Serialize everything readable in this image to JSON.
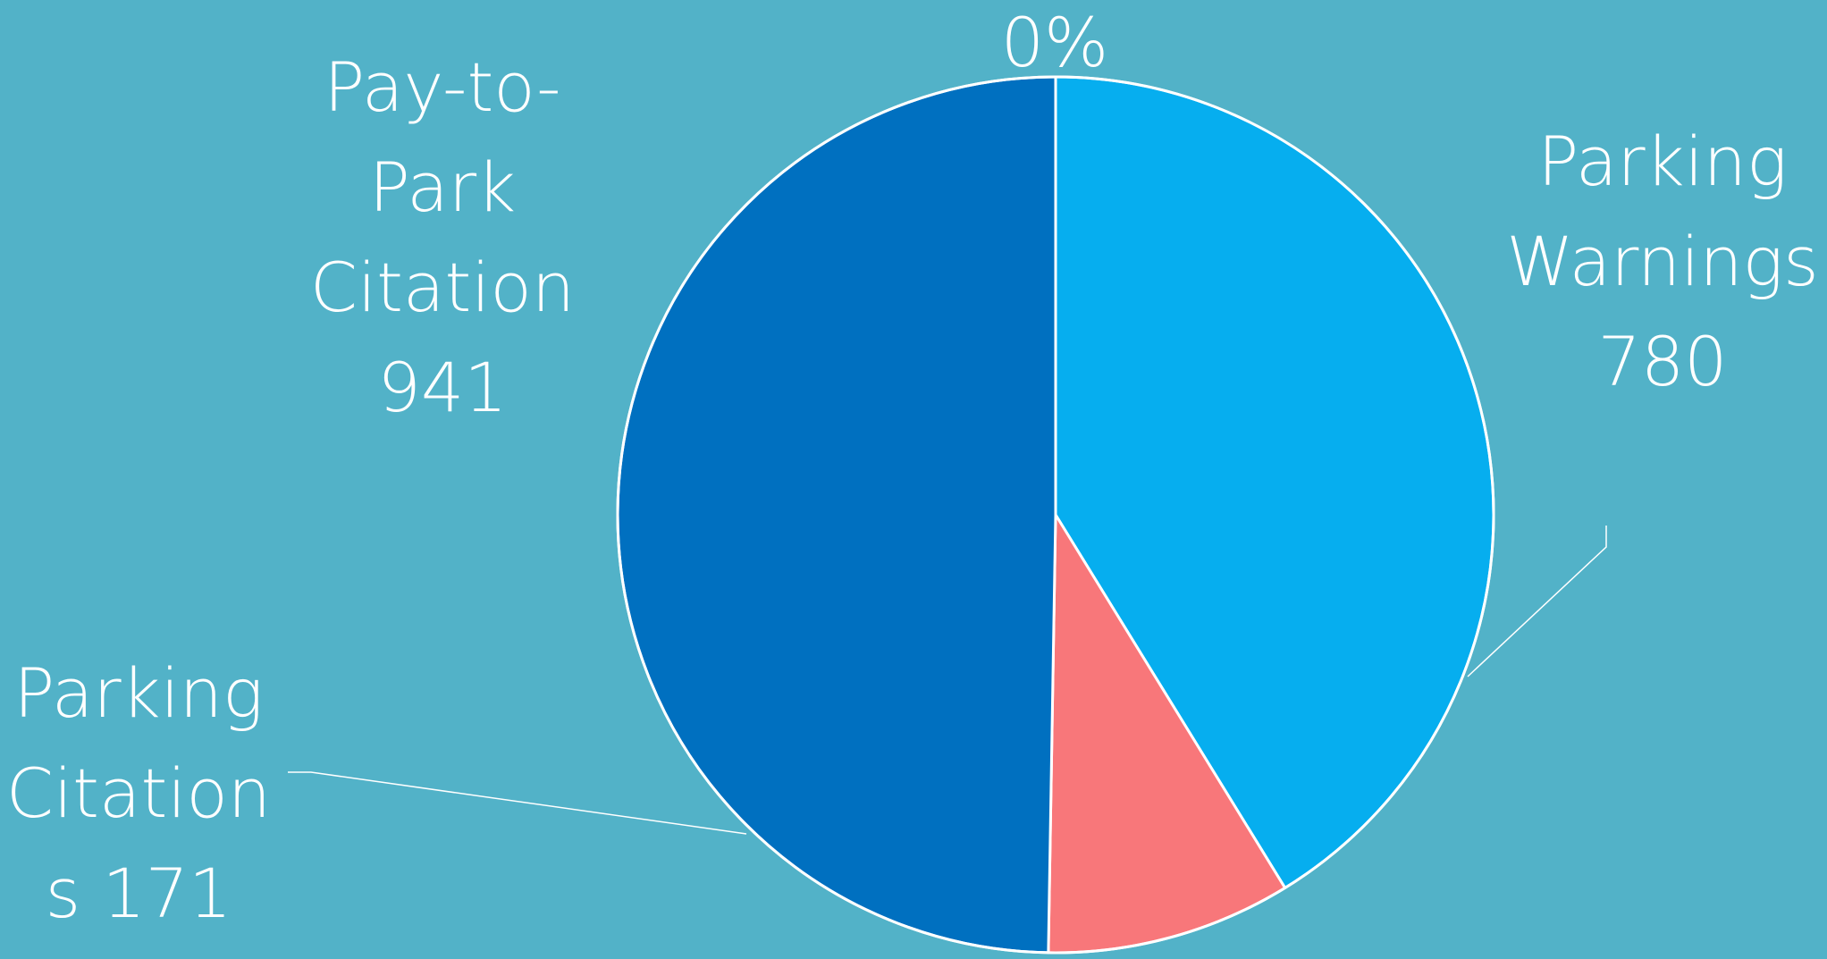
{
  "chart_data": {
    "type": "pie",
    "categories": [
      "Parking Warnings",
      "Parking Citations",
      "Pay-to-Park Citation",
      ""
    ],
    "values": [
      780,
      171,
      941,
      0
    ],
    "colors": [
      "#06aeef",
      "#f8777a",
      "#0070c0",
      "#ffffff"
    ],
    "labels": {
      "pay_to_park": "Pay-to-\nPark\nCitation\n941",
      "warnings": "Parking\nWarnings\n780",
      "citations": "Parking\nCitation\ns 171",
      "zero": "0%"
    }
  }
}
